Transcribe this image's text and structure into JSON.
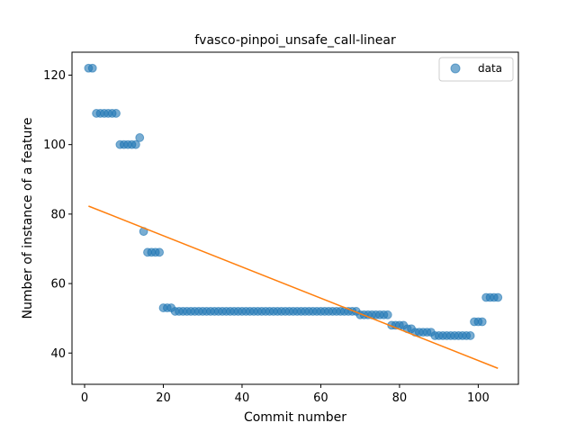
{
  "chart_data": {
    "type": "scatter",
    "title": "fvasco-pinpoi_unsafe_call-linear",
    "xlabel": "Commit number",
    "ylabel": "Number of instance of a feature",
    "xlim": [
      -3.2,
      110.2
    ],
    "ylim": [
      31.0,
      126.6
    ],
    "xticks": [
      0,
      20,
      40,
      60,
      80,
      100
    ],
    "yticks": [
      40,
      60,
      80,
      100,
      120
    ],
    "grid": false,
    "legend": {
      "placement": "top-right",
      "entries": [
        "data"
      ]
    },
    "colors": {
      "data": "#1f77b4",
      "fit": "#ff7f0e"
    },
    "series": [
      {
        "name": "data",
        "kind": "points",
        "x": [
          1,
          2,
          3,
          4,
          5,
          6,
          7,
          8,
          9,
          10,
          11,
          12,
          13,
          14,
          15,
          16,
          17,
          18,
          19,
          20,
          21,
          22,
          23,
          24,
          25,
          26,
          27,
          28,
          29,
          30,
          31,
          32,
          33,
          34,
          35,
          36,
          37,
          38,
          39,
          40,
          41,
          42,
          43,
          44,
          45,
          46,
          47,
          48,
          49,
          50,
          51,
          52,
          53,
          54,
          55,
          56,
          57,
          58,
          59,
          60,
          61,
          62,
          63,
          64,
          65,
          66,
          67,
          68,
          69,
          70,
          71,
          72,
          73,
          74,
          75,
          76,
          77,
          78,
          79,
          80,
          81,
          82,
          83,
          84,
          85,
          86,
          87,
          88,
          89,
          90,
          91,
          92,
          93,
          94,
          95,
          96,
          97,
          98,
          99,
          100,
          101,
          102,
          103,
          104,
          105
        ],
        "y": [
          122,
          122,
          109,
          109,
          109,
          109,
          109,
          109,
          100,
          100,
          100,
          100,
          100,
          102,
          75,
          69,
          69,
          69,
          69,
          53,
          53,
          53,
          52,
          52,
          52,
          52,
          52,
          52,
          52,
          52,
          52,
          52,
          52,
          52,
          52,
          52,
          52,
          52,
          52,
          52,
          52,
          52,
          52,
          52,
          52,
          52,
          52,
          52,
          52,
          52,
          52,
          52,
          52,
          52,
          52,
          52,
          52,
          52,
          52,
          52,
          52,
          52,
          52,
          52,
          52,
          52,
          52,
          52,
          52,
          51,
          51,
          51,
          51,
          51,
          51,
          51,
          51,
          48,
          48,
          48,
          48,
          47,
          47,
          46,
          46,
          46,
          46,
          46,
          45,
          45,
          45,
          45,
          45,
          45,
          45,
          45,
          45,
          45,
          49,
          49,
          49,
          56,
          56,
          56,
          56
        ]
      },
      {
        "name": "",
        "kind": "line",
        "x": [
          1,
          105
        ],
        "y": [
          82.3,
          35.6
        ]
      }
    ]
  }
}
